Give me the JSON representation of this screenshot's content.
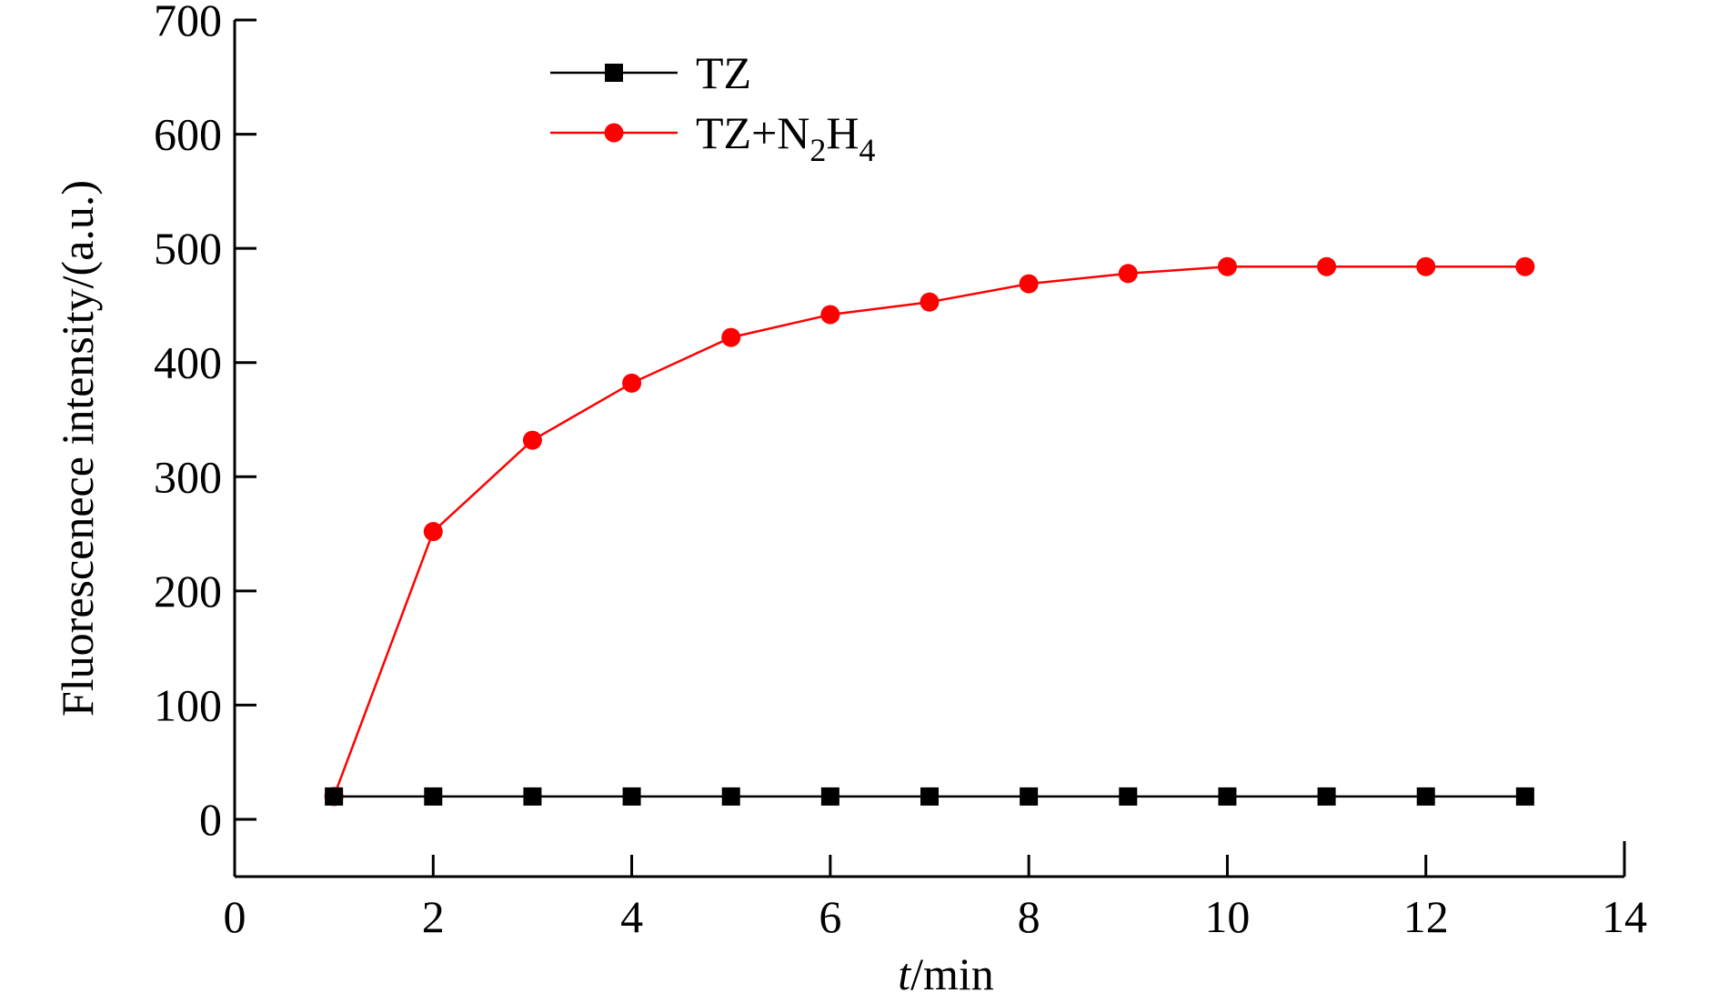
{
  "chart_data": {
    "type": "line",
    "xlabel": {
      "italic_part": "t",
      "rest": "/min"
    },
    "ylabel": "Fluorescenece intensity/(a.u.)",
    "xlim": [
      0,
      14
    ],
    "ylim": [
      -50,
      700
    ],
    "x_ticks": [
      0,
      2,
      4,
      6,
      8,
      10,
      12,
      14
    ],
    "y_ticks": [
      0,
      100,
      200,
      300,
      400,
      500,
      600,
      700
    ],
    "x_tick_labels": [
      "0",
      "2",
      "4",
      "6",
      "8",
      "10",
      "12",
      "14"
    ],
    "y_tick_labels": [
      "0",
      "100",
      "200",
      "300",
      "400",
      "500",
      "600",
      "700"
    ],
    "grid": false,
    "legend_position": "top-left",
    "x": [
      1,
      2,
      3,
      4,
      5,
      6,
      7,
      8,
      9,
      10,
      11,
      12,
      13
    ],
    "series": [
      {
        "name": "TZ",
        "legend_parts": [
          {
            "text": "TZ"
          }
        ],
        "color": "#000000",
        "marker": "square",
        "values": [
          20,
          20,
          20,
          20,
          20,
          20,
          20,
          20,
          20,
          20,
          20,
          20,
          20
        ]
      },
      {
        "name": "TZ+N2H4",
        "legend_parts": [
          {
            "text": "TZ+N"
          },
          {
            "text": "2",
            "sub": true
          },
          {
            "text": "H"
          },
          {
            "text": "4",
            "sub": true
          }
        ],
        "color": "#ff0000",
        "marker": "circle",
        "values": [
          20,
          252,
          332,
          382,
          422,
          442,
          453,
          469,
          478,
          484,
          484,
          484,
          484
        ]
      }
    ]
  }
}
